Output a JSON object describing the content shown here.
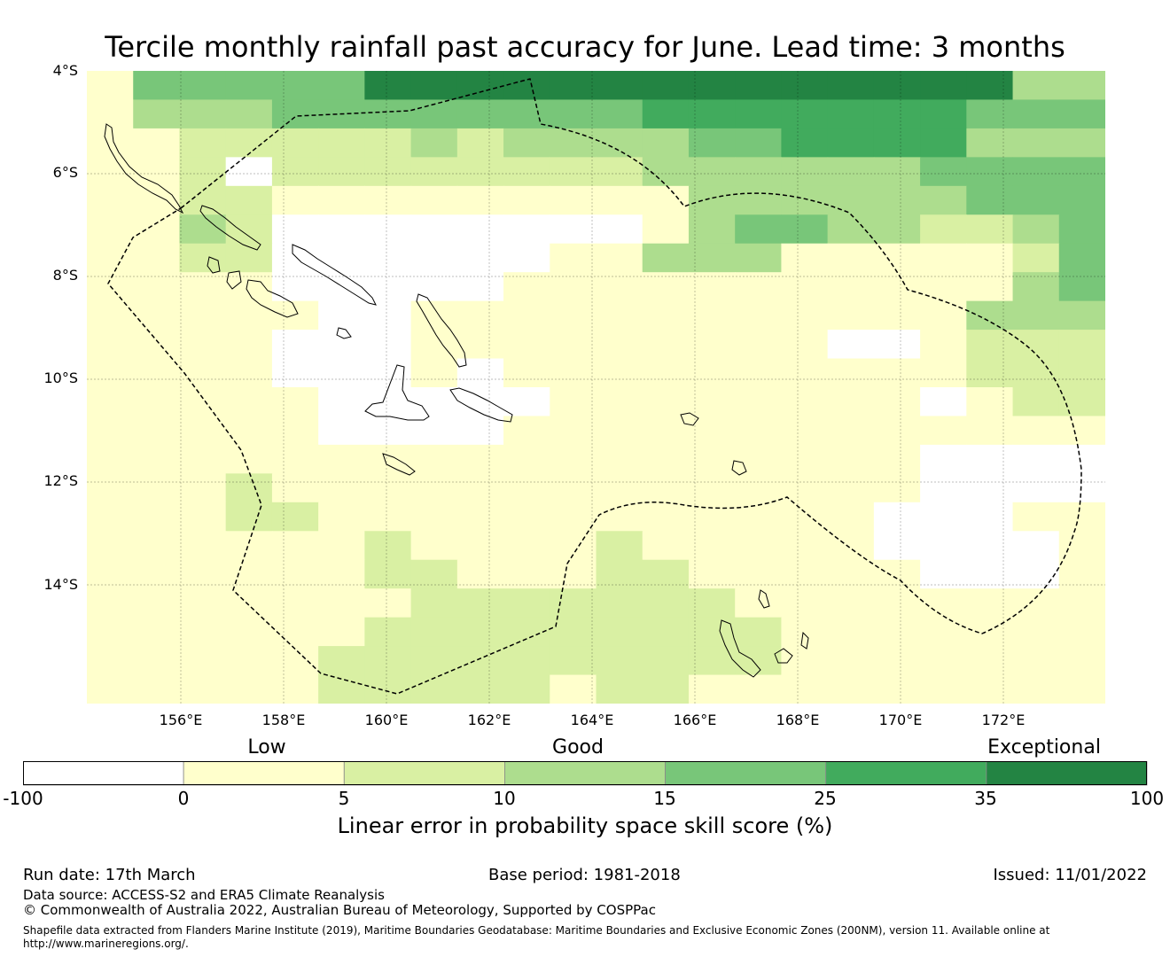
{
  "title": "Tercile monthly rainfall past accuracy for June. Lead time: 3 months",
  "lat_labels": [
    "4°S",
    "6°S",
    "8°S",
    "10°S",
    "12°S",
    "14°S"
  ],
  "lon_labels": [
    "156°E",
    "158°E",
    "160°E",
    "162°E",
    "164°E",
    "166°E",
    "168°E",
    "170°E",
    "172°E"
  ],
  "categories": [
    "Low",
    "Good",
    "Exceptional"
  ],
  "colorbar": {
    "ticks": [
      "-100",
      "0",
      "5",
      "10",
      "15",
      "25",
      "35",
      "100"
    ],
    "colors": [
      "#ffffff",
      "#ffffcc",
      "#d9f0a3",
      "#addd8e",
      "#78c679",
      "#41ab5d",
      "#238443"
    ],
    "label": "Linear error in probability space skill score (%)"
  },
  "footer": {
    "run_date": "Run date: 17th March",
    "base_period": "Base period: 1981-2018",
    "issued": "Issued: 11/01/2022",
    "data_source": "Data source: ACCESS-S2 and ERA5 Climate Reanalysis",
    "copyright": "© Commonwealth of Australia 2022, Australian Bureau of Meteorology, Supported by COSPPac",
    "shapefile_line1": "Shapefile data extracted from Flanders Marine Institute (2019), Maritime Boundaries Geodatabase: Maritime Boundaries and Exclusive Economic Zones (200NM), version 11. Available online at",
    "shapefile_line2": "http://www.marineregions.org/."
  },
  "skill_grid": [
    "1444446666666666666633",
    "1333444444445555555444",
    "1122222323333445555333",
    "1120222222223333334444",
    "1122111111111333333444",
    "1132000000001344332234",
    "1122000000113331111124",
    "1111000001111111111134",
    "1111100111111111111333",
    "1111000111111111001222",
    "1111000101111111111222",
    "1111100000111111110122",
    "1111100001111111111111",
    "1111111111111111110000",
    "1112111111111111110000",
    "1112211111111111100011",
    "1111112111121111100001",
    "1111112211122111110001",
    "1111111222222211111111",
    "1111112222222221111111",
    "1111122222222221111111",
    "1111122222122111111111"
  ]
}
